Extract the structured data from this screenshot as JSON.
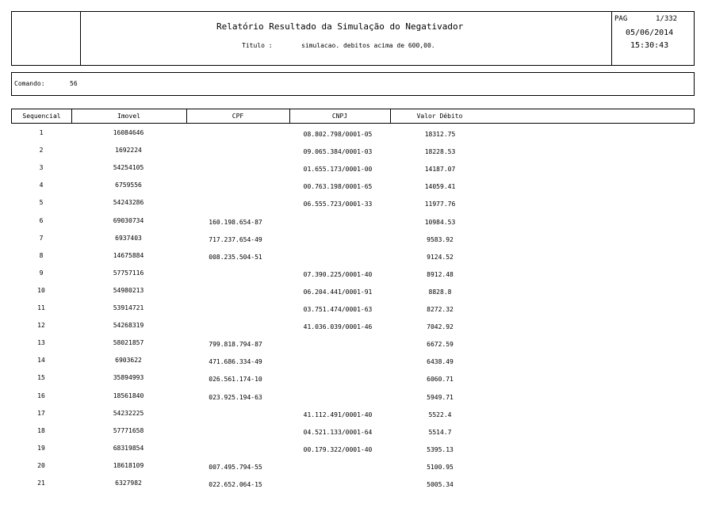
{
  "header": {
    "title": "Relatório Resultado da Simulação do Negativador",
    "subtitle_label": "Titulo :",
    "subtitle_value": "simulacao. debitos acima de 600,00.",
    "page_label": "PAG",
    "page_value": "1/332",
    "date": "05/06/2014",
    "time": "15:30:43"
  },
  "command": {
    "label": "Comando:",
    "value": "56"
  },
  "table": {
    "columns": [
      "Sequencial",
      "Imovel",
      "CPF",
      "CNPJ",
      "Valor Débito"
    ],
    "rows": [
      [
        "1",
        "16084646",
        "",
        "08.802.798/0001-05",
        "18312.75"
      ],
      [
        "2",
        "1692224",
        "",
        "09.065.384/0001-03",
        "18228.53"
      ],
      [
        "3",
        "54254105",
        "",
        "01.655.173/0001-00",
        "14187.07"
      ],
      [
        "4",
        "6759556",
        "",
        "00.763.198/0001-65",
        "14059.41"
      ],
      [
        "5",
        "54243286",
        "",
        "06.555.723/0001-33",
        "11977.76"
      ],
      [
        "6",
        "69030734",
        "160.198.654-87",
        "",
        "10984.53"
      ],
      [
        "7",
        "6937403",
        "717.237.654-49",
        "",
        "9583.92"
      ],
      [
        "8",
        "14675884",
        "008.235.504-51",
        "",
        "9124.52"
      ],
      [
        "9",
        "57757116",
        "",
        "07.390.225/0001-40",
        "8912.48"
      ],
      [
        "10",
        "54980213",
        "",
        "06.204.441/0001-91",
        "8828.8"
      ],
      [
        "11",
        "53914721",
        "",
        "03.751.474/0001-63",
        "8272.32"
      ],
      [
        "12",
        "54268319",
        "",
        "41.036.039/0001-46",
        "7042.92"
      ],
      [
        "13",
        "58021857",
        "799.818.794-87",
        "",
        "6672.59"
      ],
      [
        "14",
        "6903622",
        "471.686.334-49",
        "",
        "6438.49"
      ],
      [
        "15",
        "35894993",
        "026.561.174-10",
        "",
        "6060.71"
      ],
      [
        "16",
        "18561840",
        "023.925.194-63",
        "",
        "5949.71"
      ],
      [
        "17",
        "54232225",
        "",
        "41.112.491/0001-40",
        "5522.4"
      ],
      [
        "18",
        "57771658",
        "",
        "04.521.133/0001-64",
        "5514.7"
      ],
      [
        "19",
        "68319854",
        "",
        "00.179.322/0001-40",
        "5395.13"
      ],
      [
        "20",
        "18618109",
        "007.495.794-55",
        "",
        "5100.95"
      ],
      [
        "21",
        "6327982",
        "022.652.064-15",
        "",
        "5005.34"
      ]
    ]
  }
}
